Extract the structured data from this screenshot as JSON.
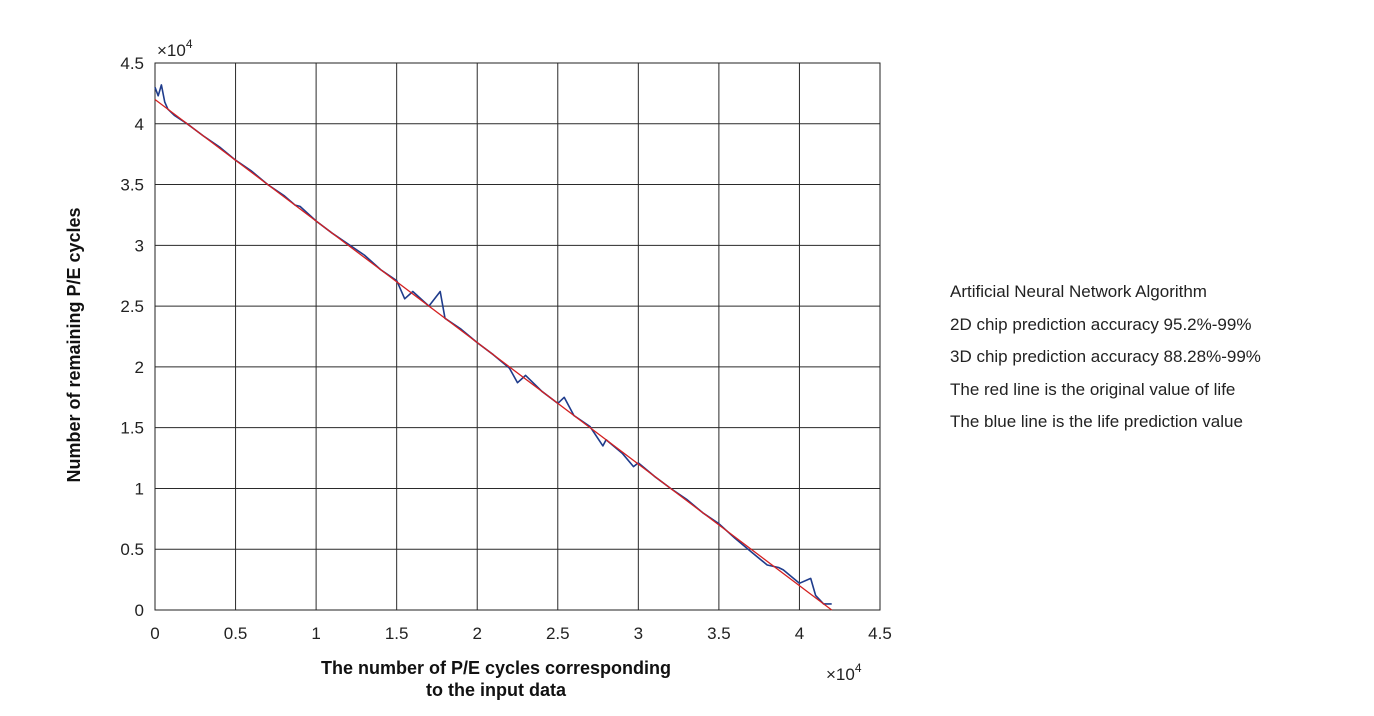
{
  "chart_data": {
    "type": "line",
    "xlabel": "The number of P/E cycles corresponding to the input data",
    "xlabel_lines": [
      "The number of P/E cycles corresponding",
      "to the input data"
    ],
    "ylabel": "Number of remaining P/E cycles",
    "x_exponent_label": "×10",
    "y_exponent_label": "×10",
    "exponent_power": "4",
    "xlim": [
      0,
      45000
    ],
    "ylim": [
      0,
      45000
    ],
    "x_ticks": [
      0,
      5000,
      10000,
      15000,
      20000,
      25000,
      30000,
      35000,
      40000,
      45000
    ],
    "y_ticks": [
      0,
      5000,
      10000,
      15000,
      20000,
      25000,
      30000,
      35000,
      40000,
      45000
    ],
    "x_tick_labels": [
      "0",
      "0.5",
      "1",
      "1.5",
      "2",
      "2.5",
      "3",
      "3.5",
      "4",
      "4.5"
    ],
    "y_tick_labels": [
      "0",
      "0.5",
      "1",
      "1.5",
      "2",
      "2.5",
      "3",
      "3.5",
      "4",
      "4.5"
    ],
    "grid": true,
    "series": [
      {
        "color": "#d42020",
        "x": [
          0,
          42000
        ],
        "y": [
          42000,
          0
        ]
      },
      {
        "color": "#1f3c8c",
        "x": [
          0,
          200,
          400,
          600,
          800,
          1200,
          2000,
          3000,
          4000,
          5000,
          6000,
          7000,
          8000,
          8700,
          9000,
          10000,
          11000,
          12000,
          13000,
          14000,
          15000,
          15500,
          16000,
          17000,
          17700,
          18000,
          19000,
          20000,
          21000,
          22000,
          22500,
          23000,
          24000,
          25000,
          25400,
          26000,
          27000,
          27800,
          28000,
          29000,
          29700,
          30000,
          31000,
          32000,
          33000,
          34000,
          35000,
          36000,
          37000,
          38000,
          38700,
          39000,
          40000,
          40700,
          41000,
          41500,
          42000
        ],
        "y": [
          43000,
          42300,
          43200,
          41800,
          41200,
          40700,
          40000,
          39000,
          38100,
          37000,
          36100,
          35000,
          34100,
          33300,
          33200,
          32000,
          31000,
          30100,
          29200,
          28000,
          27100,
          25600,
          26200,
          25000,
          26200,
          24000,
          23100,
          22000,
          21000,
          19900,
          18700,
          19300,
          18000,
          17000,
          17500,
          16000,
          15100,
          13500,
          14000,
          12900,
          11800,
          12100,
          11000,
          10000,
          9100,
          8000,
          7100,
          5900,
          4800,
          3700,
          3500,
          3300,
          2200,
          2600,
          1200,
          500,
          500
        ]
      }
    ]
  },
  "annotations": {
    "lines": [
      "Artificial Neural Network Algorithm",
      "2D chip prediction accuracy 95.2%-99%",
      "3D chip prediction accuracy 88.28%-99%",
      "The red line is the original value of life",
      "The blue line is the life prediction value"
    ]
  }
}
